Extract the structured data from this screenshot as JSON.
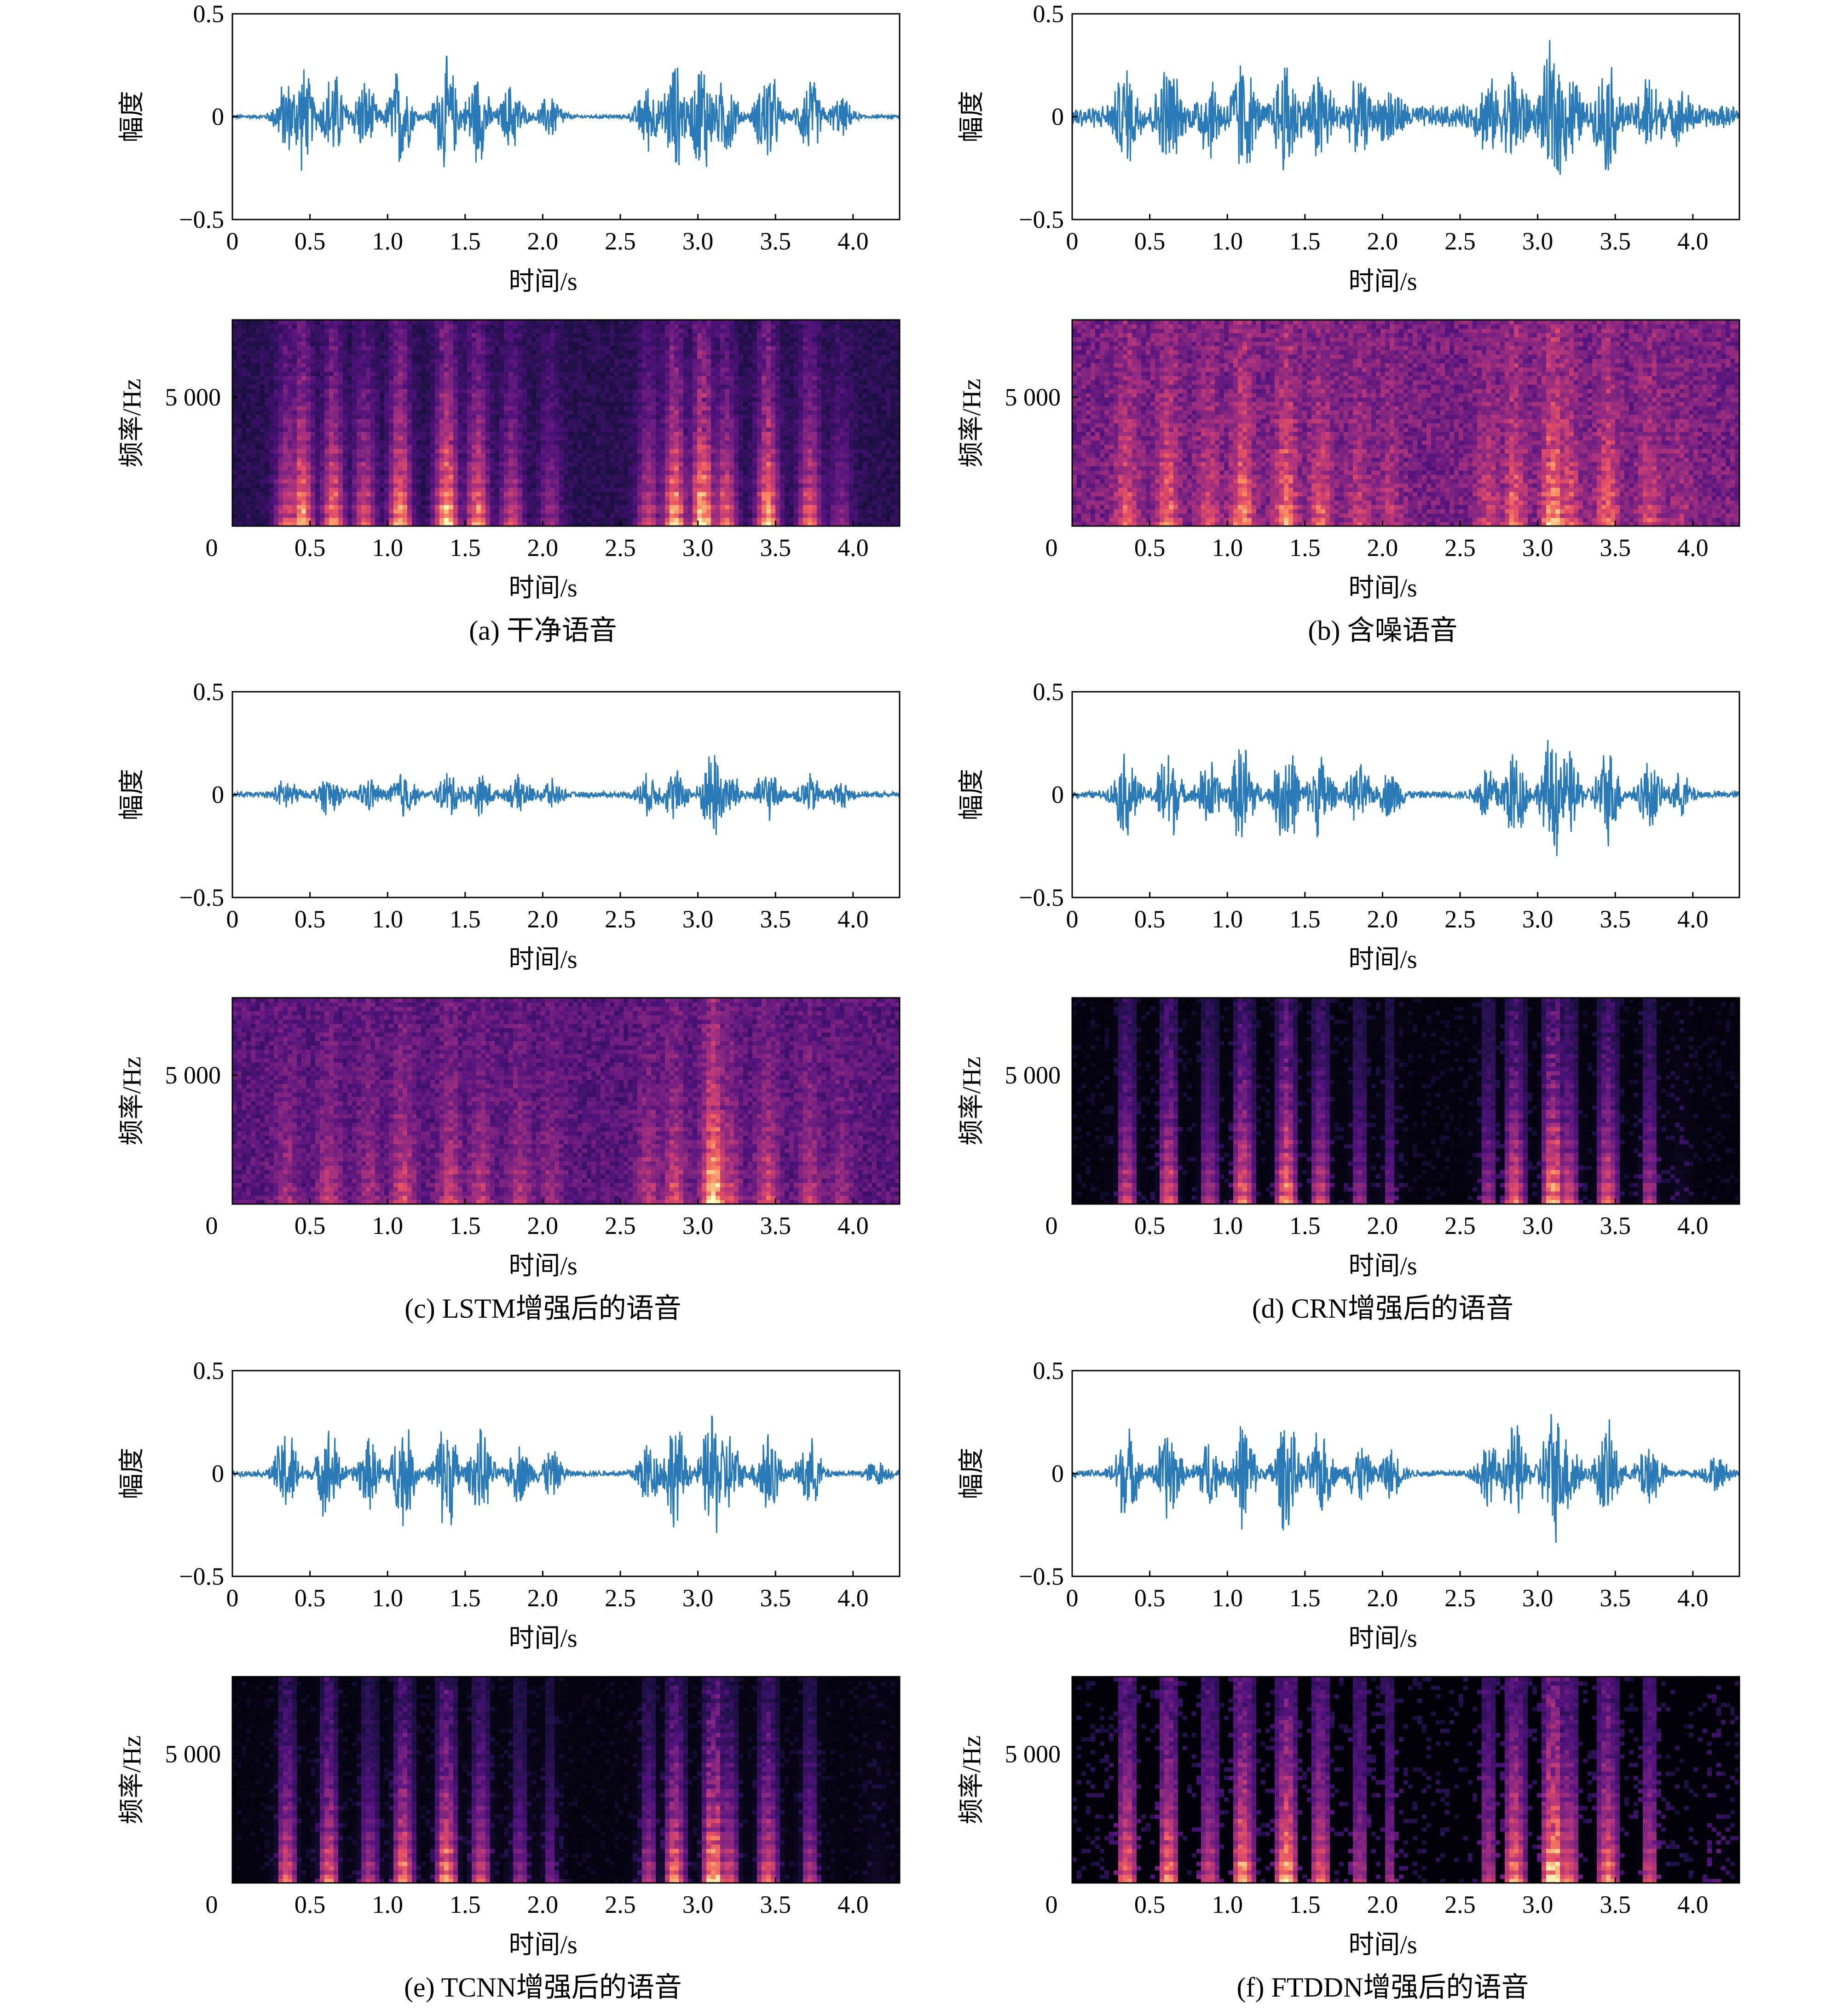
{
  "colors": {
    "waveform": "#2a7ab8",
    "frame": "#000000",
    "background": "#ffffff"
  },
  "chart_data": [
    {
      "id": "a",
      "caption": "(a)  干净语音",
      "waveform": {
        "type": "line",
        "ylabel": "幅度",
        "xlabel": "时间/s",
        "xlim": [
          0,
          4.3
        ],
        "ylim": [
          -0.5,
          0.5
        ],
        "xticks": [
          "0",
          "0.5",
          "1.0",
          "1.5",
          "2.0",
          "2.5",
          "3.0",
          "3.5",
          "4.0"
        ],
        "yticks": [
          "0.5",
          "0",
          "−0.5"
        ],
        "noise_floor": 0.01,
        "peak_max": 0.34,
        "envelope": [
          [
            0.35,
            0.2
          ],
          [
            0.45,
            0.28
          ],
          [
            0.65,
            0.25
          ],
          [
            0.85,
            0.2
          ],
          [
            1.08,
            0.28
          ],
          [
            1.38,
            0.31
          ],
          [
            1.58,
            0.25
          ],
          [
            1.8,
            0.18
          ],
          [
            2.05,
            0.12
          ],
          [
            2.68,
            0.18
          ],
          [
            2.85,
            0.29
          ],
          [
            3.03,
            0.33
          ],
          [
            3.18,
            0.22
          ],
          [
            3.45,
            0.28
          ],
          [
            3.72,
            0.22
          ],
          [
            3.92,
            0.1
          ]
        ]
      },
      "spectrogram": {
        "type": "heatmap",
        "ylabel": "频率/Hz",
        "xlabel": "时间/s",
        "xlim": [
          0,
          4.3
        ],
        "ylim": [
          0,
          8000
        ],
        "xticks": [
          "0",
          "0.5",
          "1.0",
          "1.5",
          "2.0",
          "2.5",
          "3.0",
          "3.5",
          "4.0"
        ],
        "yticks": [
          "5 000"
        ],
        "floor": 0.2,
        "speech_gain": 1.0,
        "gate": 0
      }
    },
    {
      "id": "b",
      "caption": "(b)  含噪语音",
      "waveform": {
        "type": "line",
        "ylabel": "幅度",
        "xlabel": "时间/s",
        "xlim": [
          0,
          4.3
        ],
        "ylim": [
          -0.5,
          0.5
        ],
        "xticks": [
          "0",
          "0.5",
          "1.0",
          "1.5",
          "2.0",
          "2.5",
          "3.0",
          "3.5",
          "4.0"
        ],
        "yticks": [
          "0.5",
          "0",
          "−0.5"
        ],
        "noise_floor": 0.06,
        "peak_max": 0.38,
        "envelope": [
          [
            0.35,
            0.22
          ],
          [
            0.62,
            0.25
          ],
          [
            0.88,
            0.18
          ],
          [
            1.1,
            0.28
          ],
          [
            1.38,
            0.28
          ],
          [
            1.6,
            0.22
          ],
          [
            1.85,
            0.15
          ],
          [
            2.05,
            0.12
          ],
          [
            2.68,
            0.16
          ],
          [
            2.85,
            0.24
          ],
          [
            3.1,
            0.36
          ],
          [
            3.2,
            0.22
          ],
          [
            3.45,
            0.25
          ],
          [
            3.72,
            0.18
          ],
          [
            3.92,
            0.1
          ]
        ]
      },
      "spectrogram": {
        "type": "heatmap",
        "ylabel": "频率/Hz",
        "xlabel": "时间/s",
        "xlim": [
          0,
          4.3
        ],
        "ylim": [
          0,
          8000
        ],
        "xticks": [
          "0",
          "0.5",
          "1.0",
          "1.5",
          "2.0",
          "2.5",
          "3.0",
          "3.5",
          "4.0"
        ],
        "yticks": [
          "5 000"
        ],
        "floor": 0.45,
        "speech_gain": 0.6,
        "gate": 0
      }
    },
    {
      "id": "c",
      "caption": "(c)  LSTM增强后的语音",
      "waveform": {
        "type": "line",
        "ylabel": "幅度",
        "xlabel": "时间/s",
        "xlim": [
          0,
          4.3
        ],
        "ylim": [
          -0.5,
          0.5
        ],
        "xticks": [
          "0",
          "0.5",
          "1.0",
          "1.5",
          "2.0",
          "2.5",
          "3.0",
          "3.5",
          "4.0"
        ],
        "yticks": [
          "0.5",
          "0",
          "−0.5"
        ],
        "noise_floor": 0.015,
        "peak_max": 0.25,
        "envelope": [
          [
            0.35,
            0.08
          ],
          [
            0.62,
            0.1
          ],
          [
            0.88,
            0.08
          ],
          [
            1.1,
            0.13
          ],
          [
            1.4,
            0.12
          ],
          [
            1.6,
            0.1
          ],
          [
            1.85,
            0.09
          ],
          [
            2.05,
            0.07
          ],
          [
            2.68,
            0.1
          ],
          [
            2.85,
            0.13
          ],
          [
            3.1,
            0.25
          ],
          [
            3.2,
            0.12
          ],
          [
            3.45,
            0.13
          ],
          [
            3.72,
            0.1
          ],
          [
            3.92,
            0.06
          ]
        ]
      },
      "spectrogram": {
        "type": "heatmap",
        "ylabel": "频率/Hz",
        "xlabel": "时间/s",
        "xlim": [
          0,
          4.3
        ],
        "ylim": [
          0,
          8000
        ],
        "xticks": [
          "0",
          "0.5",
          "1.0",
          "1.5",
          "2.0",
          "2.5",
          "3.0",
          "3.5",
          "4.0"
        ],
        "yticks": [
          "5 000"
        ],
        "floor": 0.35,
        "speech_gain": 1.15,
        "gate": 0
      }
    },
    {
      "id": "d",
      "caption": "(d)  CRN增强后的语音",
      "waveform": {
        "type": "line",
        "ylabel": "幅度",
        "xlabel": "时间/s",
        "xlim": [
          0,
          4.3
        ],
        "ylim": [
          -0.5,
          0.5
        ],
        "xticks": [
          "0",
          "0.5",
          "1.0",
          "1.5",
          "2.0",
          "2.5",
          "3.0",
          "3.5",
          "4.0"
        ],
        "yticks": [
          "0.5",
          "0",
          "−0.5"
        ],
        "noise_floor": 0.02,
        "peak_max": 0.34,
        "envelope": [
          [
            0.35,
            0.22
          ],
          [
            0.62,
            0.25
          ],
          [
            0.88,
            0.18
          ],
          [
            1.1,
            0.28
          ],
          [
            1.38,
            0.3
          ],
          [
            1.6,
            0.22
          ],
          [
            1.85,
            0.15
          ],
          [
            2.05,
            0.12
          ],
          [
            2.68,
            0.16
          ],
          [
            2.85,
            0.26
          ],
          [
            3.1,
            0.34
          ],
          [
            3.2,
            0.22
          ],
          [
            3.45,
            0.25
          ],
          [
            3.72,
            0.18
          ],
          [
            3.92,
            0.1
          ]
        ]
      },
      "spectrogram": {
        "type": "heatmap",
        "ylabel": "频率/Hz",
        "xlabel": "时间/s",
        "xlim": [
          0,
          4.3
        ],
        "ylim": [
          0,
          8000
        ],
        "xticks": [
          "0",
          "0.5",
          "1.0",
          "1.5",
          "2.0",
          "2.5",
          "3.0",
          "3.5",
          "4.0"
        ],
        "yticks": [
          "5 000"
        ],
        "floor": 0.1,
        "speech_gain": 0.95,
        "gate": 0.12
      }
    },
    {
      "id": "e",
      "caption": "(e)  TCNN增强后的语音",
      "waveform": {
        "type": "line",
        "ylabel": "幅度",
        "xlabel": "时间/s",
        "xlim": [
          0,
          4.3
        ],
        "ylim": [
          -0.5,
          0.5
        ],
        "xticks": [
          "0",
          "0.5",
          "1.0",
          "1.5",
          "2.0",
          "2.5",
          "3.0",
          "3.5",
          "4.0"
        ],
        "yticks": [
          "0.5",
          "0",
          "−0.5"
        ],
        "noise_floor": 0.015,
        "peak_max": 0.35,
        "envelope": [
          [
            0.35,
            0.24
          ],
          [
            0.62,
            0.25
          ],
          [
            0.88,
            0.18
          ],
          [
            1.1,
            0.28
          ],
          [
            1.38,
            0.3
          ],
          [
            1.6,
            0.22
          ],
          [
            1.85,
            0.15
          ],
          [
            2.05,
            0.12
          ],
          [
            2.68,
            0.18
          ],
          [
            2.85,
            0.28
          ],
          [
            3.1,
            0.35
          ],
          [
            3.2,
            0.22
          ],
          [
            3.45,
            0.25
          ],
          [
            3.72,
            0.18
          ],
          [
            4.15,
            0.06
          ]
        ]
      },
      "spectrogram": {
        "type": "heatmap",
        "ylabel": "频率/Hz",
        "xlabel": "时间/s",
        "xlim": [
          0,
          4.3
        ],
        "ylim": [
          0,
          8000
        ],
        "xticks": [
          "0",
          "0.5",
          "1.0",
          "1.5",
          "2.0",
          "2.5",
          "3.0",
          "3.5",
          "4.0"
        ],
        "yticks": [
          "5 000"
        ],
        "floor": 0.08,
        "speech_gain": 1.0,
        "gate": 0.18
      }
    },
    {
      "id": "f",
      "caption": "(f)  FTDDN增强后的语音",
      "waveform": {
        "type": "line",
        "ylabel": "幅度",
        "xlabel": "时间/s",
        "xlim": [
          0,
          4.3
        ],
        "ylim": [
          -0.5,
          0.5
        ],
        "xticks": [
          "0",
          "0.5",
          "1.0",
          "1.5",
          "2.0",
          "2.5",
          "3.0",
          "3.5",
          "4.0"
        ],
        "yticks": [
          "0.5",
          "0",
          "−0.5"
        ],
        "noise_floor": 0.02,
        "peak_max": 0.36,
        "envelope": [
          [
            0.35,
            0.24
          ],
          [
            0.62,
            0.25
          ],
          [
            0.88,
            0.18
          ],
          [
            1.1,
            0.28
          ],
          [
            1.38,
            0.3
          ],
          [
            1.6,
            0.22
          ],
          [
            1.85,
            0.15
          ],
          [
            2.05,
            0.12
          ],
          [
            2.68,
            0.16
          ],
          [
            2.85,
            0.26
          ],
          [
            3.1,
            0.36
          ],
          [
            3.2,
            0.22
          ],
          [
            3.45,
            0.25
          ],
          [
            3.72,
            0.18
          ],
          [
            4.15,
            0.08
          ]
        ]
      },
      "spectrogram": {
        "type": "heatmap",
        "ylabel": "频率/Hz",
        "xlabel": "时间/s",
        "xlim": [
          0,
          4.3
        ],
        "ylim": [
          0,
          8000
        ],
        "xticks": [
          "0",
          "0.5",
          "1.0",
          "1.5",
          "2.0",
          "2.5",
          "3.0",
          "3.5",
          "4.0"
        ],
        "yticks": [
          "5 000"
        ],
        "floor": 0.18,
        "speech_gain": 1.0,
        "gate": 0.03
      }
    }
  ]
}
